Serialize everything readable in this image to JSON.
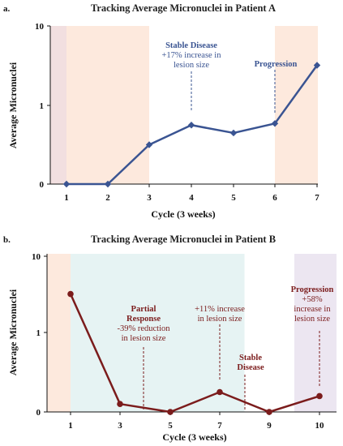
{
  "chart_data": [
    {
      "panel": "a.",
      "type": "line",
      "title": "Tracking Average Micronuclei in Patient A",
      "xlabel": "Cycle (3 weeks)",
      "ylabel": "Average Micronuclei",
      "yscale": "log-like",
      "y_ticks": [
        "0",
        "1",
        "10"
      ],
      "categories": [
        "1",
        "2",
        "3",
        "4",
        "5",
        "6",
        "7"
      ],
      "values": [
        0,
        0,
        0.5,
        0.75,
        0.65,
        0.77,
        3.2
      ],
      "line_color": "#3a5492",
      "shaded_regions": [
        {
          "from": 0.5,
          "to": 1,
          "color": "#f2dfe0"
        },
        {
          "from": 1,
          "to": 3,
          "color": "#fde9dd"
        },
        {
          "from": 6,
          "to": 7.5,
          "color": "#fde9dd"
        }
      ],
      "annotations": [
        {
          "at": "4",
          "lines": [
            "Stable Disease",
            "+17% increase in",
            "lesion size"
          ],
          "color": "#3a5492"
        },
        {
          "at": "6",
          "lines": [
            "Progression"
          ],
          "color": "#3a5492"
        }
      ]
    },
    {
      "panel": "b.",
      "type": "line",
      "title": "Tracking Average Micronuclei in Patient B",
      "xlabel": "Cycle (3 weeks)",
      "ylabel": "Average Micronuclei",
      "yscale": "log-like",
      "y_ticks": [
        "0",
        "1",
        "10"
      ],
      "categories": [
        "1",
        "3",
        "5",
        "7",
        "9",
        "10"
      ],
      "values": [
        3.2,
        0.1,
        0,
        0.25,
        0,
        0.2
      ],
      "line_color": "#7b1c1c",
      "shaded_regions": [
        {
          "from": 0.5,
          "to": 1,
          "color": "#fde9dd"
        },
        {
          "from": 1,
          "to": 4.5,
          "color": "#e6f3f3"
        },
        {
          "from": 5.5,
          "to": 6.5,
          "color": "#ece6f1"
        }
      ],
      "annotations": [
        {
          "at": "3-5",
          "lines": [
            "Partial",
            "Response",
            "-39% reduction",
            "in lesion size"
          ],
          "color": "#7b1c1c"
        },
        {
          "at": "7",
          "lines": [
            "+11% increase",
            "in lesion size"
          ],
          "color": "#7b1c1c"
        },
        {
          "at": "7-9",
          "lines": [
            "Stable",
            "Disease"
          ],
          "color": "#7b1c1c"
        },
        {
          "at": "10",
          "lines": [
            "Progression",
            "+58%",
            "increase in",
            "lesion size"
          ],
          "color": "#7b1c1c"
        }
      ]
    }
  ]
}
